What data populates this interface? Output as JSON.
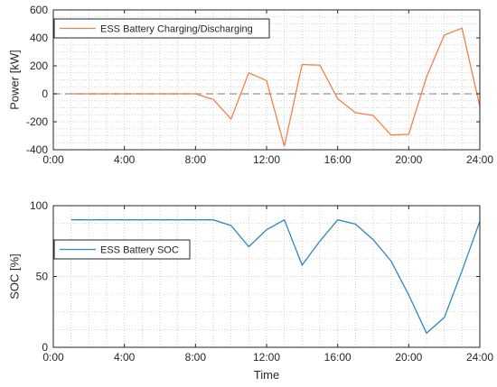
{
  "colors": {
    "background": "#ffffff",
    "axes_box": "#262626",
    "grid": "#c8c8c8",
    "zero_line": "#a6a6a6",
    "power_line": "#f0804f",
    "soc_line": "#2f86c0"
  },
  "chart_data": [
    {
      "type": "line",
      "title": "",
      "xlabel": "",
      "ylabel": "Power [kW]",
      "xlim": [
        0,
        24
      ],
      "ylim": [
        -400,
        600
      ],
      "x_ticks": [
        0,
        4,
        8,
        12,
        16,
        20,
        24
      ],
      "x_tick_labels": [
        "0:00",
        "4:00",
        "8:00",
        "12:00",
        "16:00",
        "20:00",
        "24:00"
      ],
      "y_ticks": [
        -400,
        -200,
        0,
        200,
        400,
        600
      ],
      "y_tick_labels": [
        "-400",
        "-200",
        "0",
        "200",
        "400",
        "600"
      ],
      "grid": "dotted",
      "reference_line": {
        "y": 0,
        "style": "dashed"
      },
      "legend_location": "top-left",
      "series": [
        {
          "name": "ESS Battery Charging/Discharging",
          "color": "#f0804f",
          "x": [
            1,
            2,
            3,
            4,
            5,
            6,
            7,
            8,
            9,
            10,
            11,
            12,
            13,
            14,
            15,
            16,
            17,
            18,
            19,
            20,
            21,
            22,
            23,
            24
          ],
          "values": [
            0,
            0,
            0,
            0,
            0,
            0,
            0,
            0,
            -40,
            -180,
            150,
            95,
            -375,
            210,
            205,
            -35,
            -135,
            -155,
            -295,
            -290,
            120,
            420,
            470,
            -90
          ]
        }
      ]
    },
    {
      "type": "line",
      "title": "",
      "xlabel": "Time",
      "ylabel": "SOC [%]",
      "xlim": [
        0,
        24
      ],
      "ylim": [
        0,
        100
      ],
      "x_ticks": [
        0,
        4,
        8,
        12,
        16,
        20,
        24
      ],
      "x_tick_labels": [
        "0:00",
        "4:00",
        "8:00",
        "12:00",
        "16:00",
        "20:00",
        "24:00"
      ],
      "y_ticks": [
        0,
        50,
        100
      ],
      "y_tick_labels": [
        "0",
        "50",
        "100"
      ],
      "grid": "dotted",
      "legend_location": "middle-left",
      "series": [
        {
          "name": "ESS Battery SOC",
          "color": "#2f86c0",
          "x": [
            1,
            2,
            3,
            4,
            5,
            6,
            7,
            8,
            9,
            10,
            11,
            12,
            13,
            14,
            15,
            16,
            17,
            18,
            19,
            20,
            21,
            22,
            23,
            24
          ],
          "values": [
            90,
            90,
            90,
            90,
            90,
            90,
            90,
            90,
            90,
            86,
            71,
            83,
            90,
            58,
            75,
            90,
            87,
            76,
            61,
            37,
            10,
            21,
            54,
            89
          ]
        }
      ]
    }
  ]
}
